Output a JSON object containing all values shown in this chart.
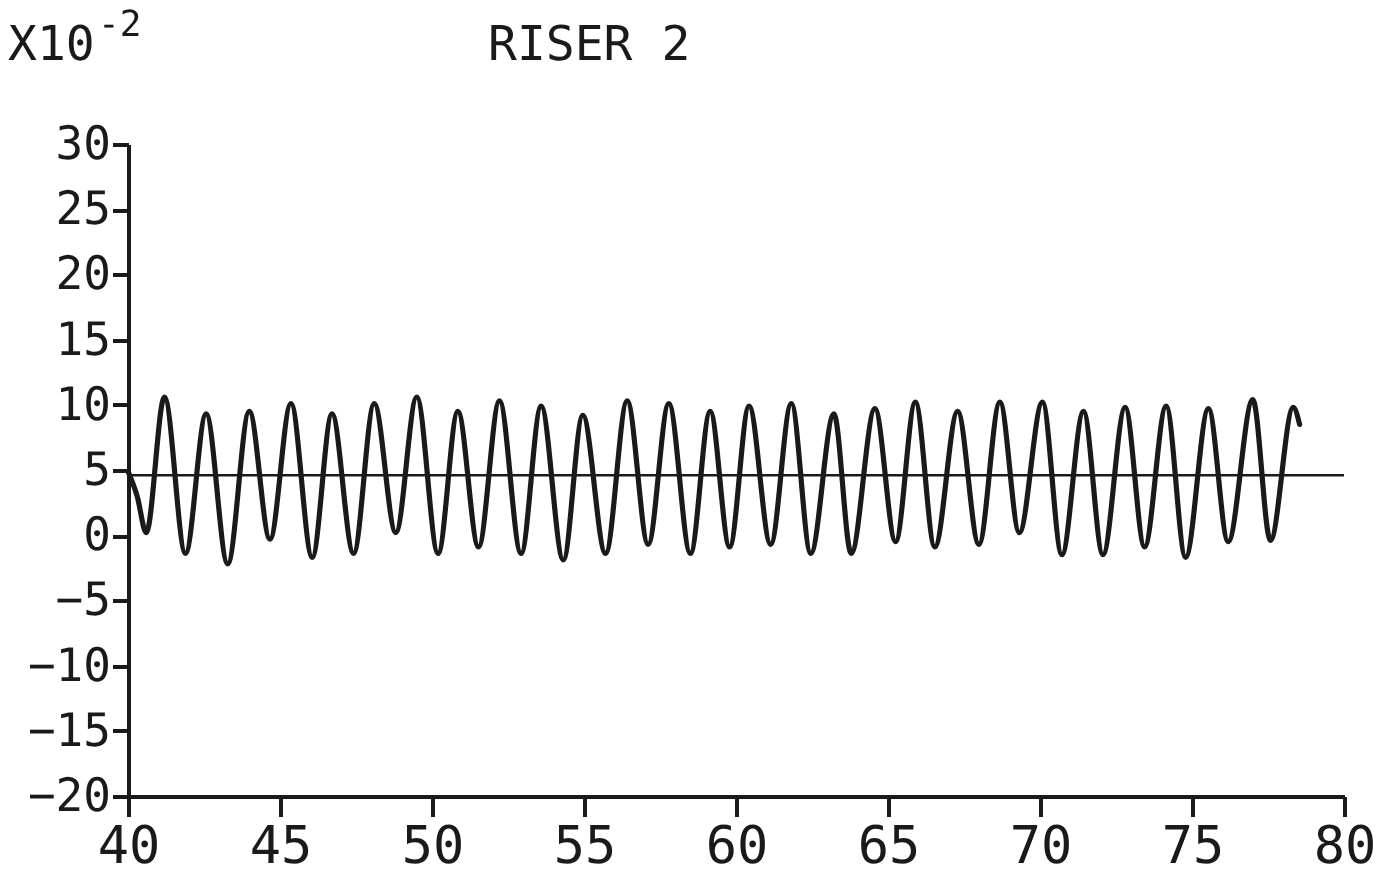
{
  "chart_data": {
    "type": "line",
    "title": "RISER 2",
    "ylabel": "X10$^{-2}$",
    "x": [
      40.0,
      40.3,
      40.6,
      41.2,
      41.89,
      42.57,
      43.28,
      43.99,
      44.67,
      45.36,
      46.06,
      46.71,
      47.42,
      48.1,
      48.81,
      49.5,
      50.2,
      50.85,
      51.53,
      52.22,
      52.93,
      53.59,
      54.32,
      54.96,
      55.71,
      56.42,
      57.11,
      57.79,
      58.5,
      59.15,
      59.79,
      60.43,
      61.14,
      61.82,
      62.46,
      63.22,
      63.79,
      64.57,
      65.25,
      65.9,
      66.54,
      67.29,
      67.99,
      68.68,
      69.32,
      70.08,
      70.72,
      71.43,
      72.07,
      72.8,
      73.44,
      74.15,
      74.79,
      75.54,
      76.19,
      77.0,
      77.58,
      78.33,
      78.54
    ],
    "series": [
      {
        "color": "#1a1a1a",
        "values": [
          4.9,
          3.0,
          0.2,
          10.6,
          -1.4,
          9.3,
          -2.2,
          9.5,
          -0.3,
          10.1,
          -1.7,
          9.3,
          -1.4,
          10.1,
          0.2,
          10.6,
          -1.4,
          9.5,
          -0.9,
          10.3,
          -1.4,
          9.9,
          -1.9,
          9.2,
          -1.4,
          10.3,
          -0.7,
          10.1,
          -1.4,
          9.5,
          -0.9,
          9.9,
          -0.7,
          10.1,
          -1.4,
          9.3,
          -1.4,
          9.7,
          -0.5,
          10.2,
          -0.9,
          9.5,
          -0.7,
          10.2,
          0.2,
          10.2,
          -1.5,
          9.5,
          -1.5,
          9.8,
          -0.9,
          9.9,
          -1.7,
          9.7,
          -0.5,
          10.4,
          -0.4,
          9.8,
          8.5
        ]
      }
    ],
    "xlim": [
      40,
      80
    ],
    "xticks": [
      40,
      45,
      50,
      55,
      60,
      65,
      70,
      75,
      80
    ],
    "ylim": [
      -20,
      30
    ],
    "yticks": [
      -20,
      -15,
      -10,
      -5,
      0,
      5,
      10,
      15,
      20,
      25,
      30
    ],
    "ref_lines": [
      {
        "axis": "y",
        "value": 4.6,
        "color": "#1a1a1a"
      }
    ],
    "grid": false,
    "marker": "none",
    "line_style": "solid"
  }
}
